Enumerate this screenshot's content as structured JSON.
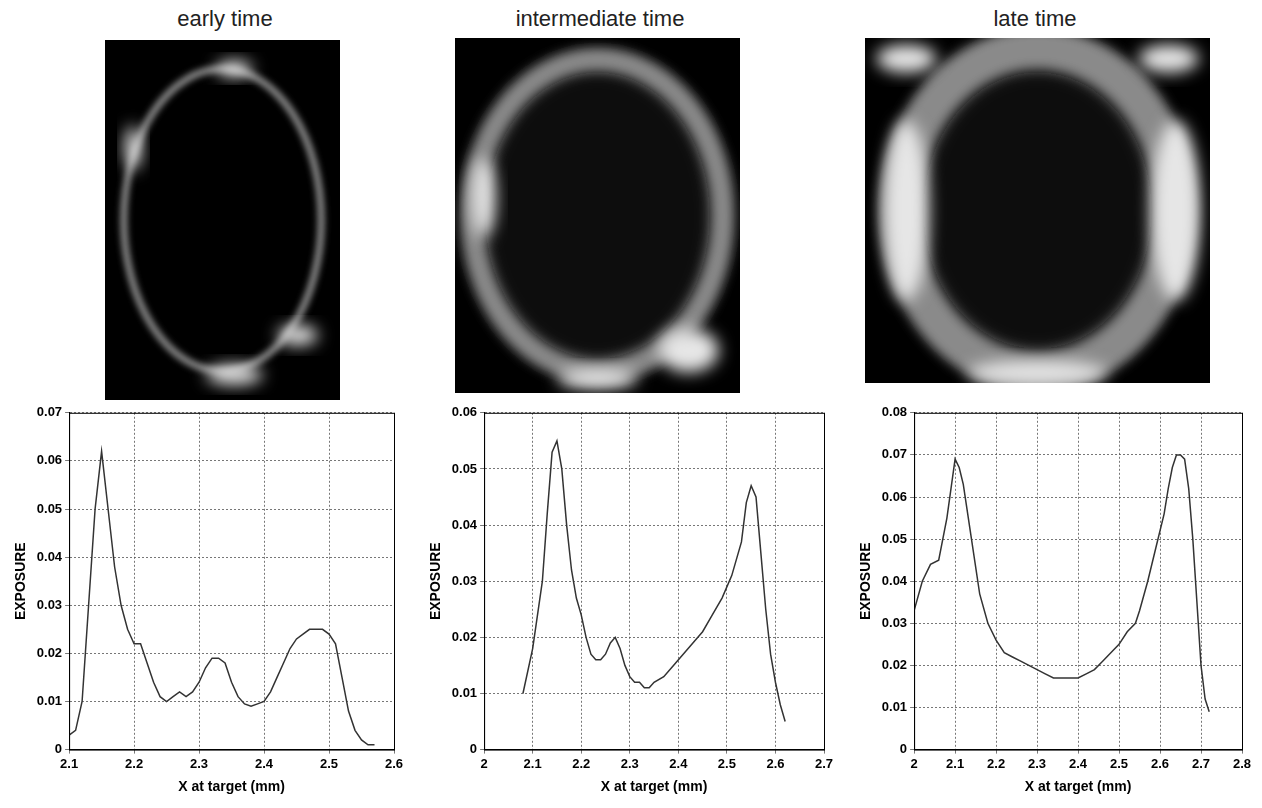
{
  "chart_data": [
    {
      "type": "line",
      "title": "early time",
      "xlabel": "X at target (mm)",
      "ylabel": "EXPOSURE",
      "color": "#333333",
      "grid": true,
      "xlim": [
        2.1,
        2.6
      ],
      "xticks": [
        2.1,
        2.2,
        2.3,
        2.4,
        2.5,
        2.6
      ],
      "ylim": [
        0,
        0.07
      ],
      "yticks": [
        0,
        0.01,
        0.02,
        0.03,
        0.04,
        0.05,
        0.06,
        0.07
      ],
      "x": [
        2.1,
        2.11,
        2.12,
        2.13,
        2.14,
        2.15,
        2.16,
        2.17,
        2.18,
        2.19,
        2.2,
        2.21,
        2.22,
        2.23,
        2.24,
        2.25,
        2.26,
        2.27,
        2.28,
        2.29,
        2.3,
        2.31,
        2.32,
        2.33,
        2.34,
        2.35,
        2.36,
        2.37,
        2.38,
        2.39,
        2.4,
        2.41,
        2.42,
        2.43,
        2.44,
        2.45,
        2.46,
        2.47,
        2.48,
        2.49,
        2.5,
        2.51,
        2.52,
        2.53,
        2.54,
        2.55,
        2.56,
        2.57
      ],
      "values": [
        0.003,
        0.004,
        0.01,
        0.03,
        0.05,
        0.062,
        0.05,
        0.038,
        0.03,
        0.025,
        0.022,
        0.022,
        0.018,
        0.014,
        0.011,
        0.01,
        0.011,
        0.012,
        0.011,
        0.012,
        0.014,
        0.017,
        0.019,
        0.019,
        0.018,
        0.014,
        0.011,
        0.0095,
        0.009,
        0.0095,
        0.01,
        0.012,
        0.015,
        0.018,
        0.021,
        0.023,
        0.024,
        0.025,
        0.025,
        0.025,
        0.024,
        0.022,
        0.015,
        0.008,
        0.004,
        0.002,
        0.001,
        0.001
      ]
    },
    {
      "type": "line",
      "title": "intermediate time",
      "xlabel": "X at target (mm)",
      "ylabel": "EXPOSURE",
      "color": "#333333",
      "grid": true,
      "xlim": [
        2,
        2.7
      ],
      "xticks": [
        2,
        2.1,
        2.2,
        2.3,
        2.4,
        2.5,
        2.6,
        2.7
      ],
      "ylim": [
        0,
        0.06
      ],
      "yticks": [
        0,
        0.01,
        0.02,
        0.03,
        0.04,
        0.05,
        0.06
      ],
      "x": [
        2.08,
        2.1,
        2.12,
        2.13,
        2.14,
        2.15,
        2.16,
        2.17,
        2.18,
        2.19,
        2.2,
        2.21,
        2.22,
        2.23,
        2.24,
        2.25,
        2.26,
        2.27,
        2.28,
        2.29,
        2.3,
        2.31,
        2.32,
        2.33,
        2.34,
        2.35,
        2.37,
        2.39,
        2.41,
        2.43,
        2.45,
        2.47,
        2.49,
        2.51,
        2.53,
        2.54,
        2.55,
        2.56,
        2.57,
        2.58,
        2.59,
        2.6,
        2.61,
        2.62
      ],
      "values": [
        0.01,
        0.018,
        0.03,
        0.042,
        0.053,
        0.055,
        0.05,
        0.04,
        0.032,
        0.027,
        0.024,
        0.02,
        0.017,
        0.016,
        0.016,
        0.017,
        0.019,
        0.02,
        0.018,
        0.015,
        0.013,
        0.012,
        0.012,
        0.011,
        0.011,
        0.012,
        0.013,
        0.015,
        0.017,
        0.019,
        0.021,
        0.024,
        0.027,
        0.031,
        0.037,
        0.044,
        0.047,
        0.045,
        0.035,
        0.025,
        0.017,
        0.012,
        0.008,
        0.005
      ]
    },
    {
      "type": "line",
      "title": "late time",
      "xlabel": "X at target (mm)",
      "ylabel": "EXPOSURE",
      "color": "#333333",
      "grid": true,
      "xlim": [
        2,
        2.8
      ],
      "xticks": [
        2,
        2.1,
        2.2,
        2.3,
        2.4,
        2.5,
        2.6,
        2.7,
        2.8
      ],
      "ylim": [
        0,
        0.08
      ],
      "yticks": [
        0,
        0.01,
        0.02,
        0.03,
        0.04,
        0.05,
        0.06,
        0.07,
        0.08
      ],
      "x": [
        2.0,
        2.02,
        2.04,
        2.06,
        2.08,
        2.09,
        2.1,
        2.11,
        2.12,
        2.14,
        2.16,
        2.18,
        2.2,
        2.22,
        2.24,
        2.26,
        2.28,
        2.3,
        2.32,
        2.34,
        2.36,
        2.38,
        2.4,
        2.42,
        2.44,
        2.46,
        2.48,
        2.5,
        2.52,
        2.54,
        2.55,
        2.57,
        2.59,
        2.61,
        2.62,
        2.63,
        2.64,
        2.65,
        2.66,
        2.67,
        2.68,
        2.69,
        2.7,
        2.71,
        2.72
      ],
      "values": [
        0.033,
        0.04,
        0.044,
        0.045,
        0.055,
        0.062,
        0.069,
        0.067,
        0.063,
        0.05,
        0.037,
        0.03,
        0.026,
        0.023,
        0.022,
        0.021,
        0.02,
        0.019,
        0.018,
        0.017,
        0.017,
        0.017,
        0.017,
        0.018,
        0.019,
        0.021,
        0.023,
        0.025,
        0.028,
        0.03,
        0.033,
        0.04,
        0.048,
        0.056,
        0.062,
        0.067,
        0.07,
        0.07,
        0.069,
        0.062,
        0.05,
        0.035,
        0.02,
        0.012,
        0.009
      ]
    }
  ]
}
